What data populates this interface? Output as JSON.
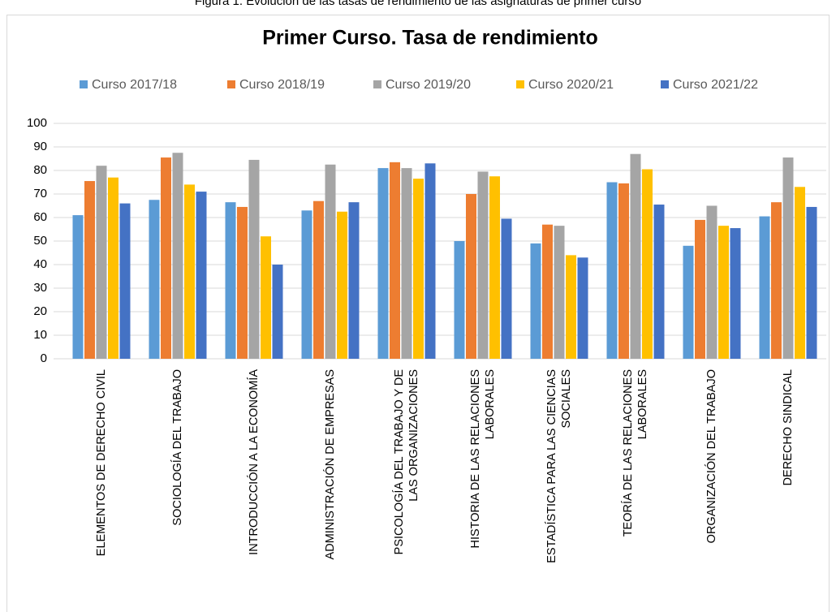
{
  "caption": "Figura 1. Evolución de las tasas de rendimiento de las asignaturas de primer curso",
  "chart_data": {
    "type": "bar",
    "title": "Primer Curso. Tasa de rendimiento",
    "categories": [
      [
        "ELEMENTOS DE DERECHO CIVIL"
      ],
      [
        "SOCIOLOGÍA DEL TRABAJO"
      ],
      [
        "INTRODUCCIÓN A LA ECONOMÍA"
      ],
      [
        "ADMINISTRACIÓN DE EMPRESAS"
      ],
      [
        "PSICOLOGÍA DEL TRABAJO Y DE",
        "LAS ORGANIZACIONES"
      ],
      [
        "HISTORIA DE LAS RELACIONES",
        "LABORALES"
      ],
      [
        "ESTADÍSTICA PARA LAS CIENCIAS",
        "SOCIALES"
      ],
      [
        "TEORÍA DE LAS RELACIONES",
        "LABORALES"
      ],
      [
        "ORGANIZACIÓN DEL TRABAJO"
      ],
      [
        "DERECHO SINDICAL"
      ]
    ],
    "series": [
      {
        "name": "Curso 2017/18",
        "color": "#5b9bd5",
        "values": [
          61,
          67.5,
          66.5,
          63,
          81,
          50,
          49,
          75,
          48,
          60.5
        ]
      },
      {
        "name": "Curso 2018/19",
        "color": "#ed7d31",
        "values": [
          75.5,
          85.5,
          64.5,
          67,
          83.5,
          70,
          57,
          74.5,
          59,
          66.5
        ]
      },
      {
        "name": "Curso 2019/20",
        "color": "#a5a5a5",
        "values": [
          82,
          87.5,
          84.5,
          82.5,
          81,
          79.5,
          56.5,
          87,
          65,
          85.5
        ]
      },
      {
        "name": "Curso 2020/21",
        "color": "#ffc000",
        "values": [
          77,
          74,
          52,
          62.5,
          76.5,
          77.5,
          44,
          80.5,
          56.5,
          73
        ]
      },
      {
        "name": "Curso 2021/22",
        "color": "#4472c4",
        "values": [
          66,
          71,
          40,
          66.5,
          83,
          59.5,
          43,
          65.5,
          55.5,
          64.5
        ]
      }
    ],
    "ylim": [
      0,
      100
    ],
    "yticks": [
      0,
      10,
      20,
      30,
      40,
      50,
      60,
      70,
      80,
      90,
      100
    ],
    "grid": true,
    "legend": "top"
  }
}
